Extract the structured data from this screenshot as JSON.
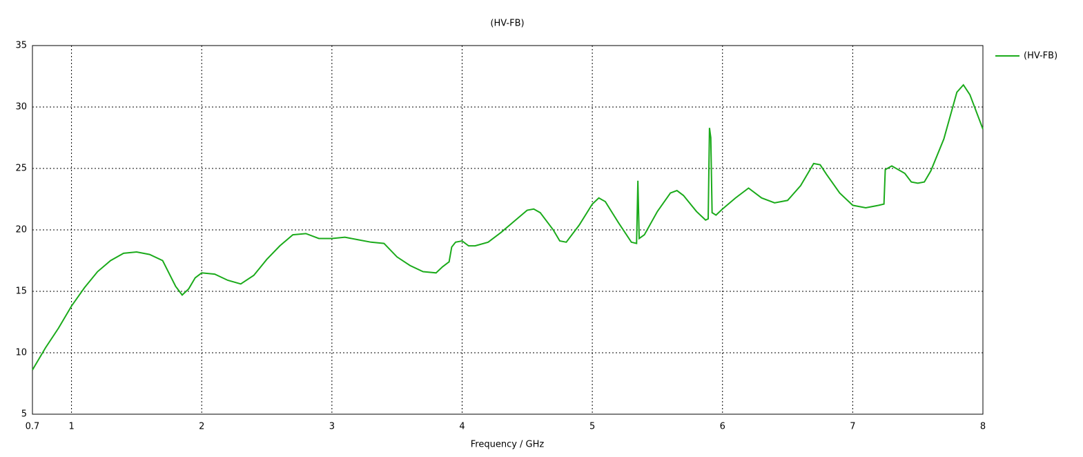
{
  "chart_data": {
    "type": "line",
    "title": "(HV-FB)",
    "x_label": "Frequency / GHz",
    "x": [
      0.7,
      0.8,
      0.9,
      1.0,
      1.1,
      1.2,
      1.3,
      1.4,
      1.5,
      1.6,
      1.7,
      1.8,
      1.85,
      1.9,
      1.95,
      2.0,
      2.1,
      2.2,
      2.3,
      2.4,
      2.5,
      2.6,
      2.7,
      2.8,
      2.9,
      3.0,
      3.1,
      3.2,
      3.3,
      3.4,
      3.5,
      3.6,
      3.7,
      3.8,
      3.85,
      3.9,
      3.92,
      3.95,
      4.0,
      4.05,
      4.1,
      4.2,
      4.3,
      4.4,
      4.5,
      4.55,
      4.6,
      4.7,
      4.75,
      4.8,
      4.9,
      5.0,
      5.05,
      5.1,
      5.2,
      5.3,
      5.34,
      5.35,
      5.36,
      5.4,
      5.5,
      5.6,
      5.65,
      5.7,
      5.8,
      5.87,
      5.89,
      5.9,
      5.91,
      5.92,
      5.95,
      6.0,
      6.1,
      6.2,
      6.3,
      6.4,
      6.5,
      6.6,
      6.7,
      6.75,
      6.8,
      6.9,
      7.0,
      7.1,
      7.2,
      7.24,
      7.25,
      7.3,
      7.4,
      7.45,
      7.5,
      7.55,
      7.6,
      7.7,
      7.8,
      7.85,
      7.9,
      8.0
    ],
    "series": [
      {
        "name": "(HV-FB)",
        "color": "#1aaa1a",
        "values": [
          8.6,
          10.4,
          12.0,
          13.8,
          15.3,
          16.6,
          17.5,
          18.1,
          18.2,
          18.0,
          17.5,
          15.4,
          14.7,
          15.2,
          16.1,
          16.5,
          16.4,
          15.9,
          15.6,
          16.3,
          17.6,
          18.7,
          19.6,
          19.7,
          19.3,
          19.3,
          19.4,
          19.2,
          19.0,
          18.9,
          17.8,
          17.1,
          16.6,
          16.5,
          17.0,
          17.4,
          18.6,
          19.0,
          19.1,
          18.7,
          18.7,
          19.0,
          19.8,
          20.7,
          21.6,
          21.7,
          21.4,
          20.0,
          19.1,
          19.0,
          20.4,
          22.1,
          22.6,
          22.3,
          20.6,
          19.0,
          18.9,
          24.0,
          19.3,
          19.6,
          21.5,
          23.0,
          23.2,
          22.8,
          21.5,
          20.8,
          20.9,
          28.3,
          27.5,
          21.4,
          21.2,
          21.7,
          22.6,
          23.4,
          22.6,
          22.2,
          22.4,
          23.6,
          25.4,
          25.3,
          24.5,
          23.0,
          22.0,
          21.8,
          22.0,
          22.1,
          24.9,
          25.2,
          24.6,
          23.9,
          23.8,
          23.9,
          24.8,
          27.4,
          31.2,
          31.8,
          31.0,
          28.2
        ]
      }
    ],
    "xlim": [
      0.7,
      8
    ],
    "ylim": [
      5,
      35
    ],
    "xticks": [
      0.7,
      1,
      2,
      3,
      4,
      5,
      6,
      7,
      8
    ],
    "yticks": [
      5,
      10,
      15,
      20,
      25,
      30,
      35
    ],
    "grid": true,
    "legend": "top-right"
  }
}
